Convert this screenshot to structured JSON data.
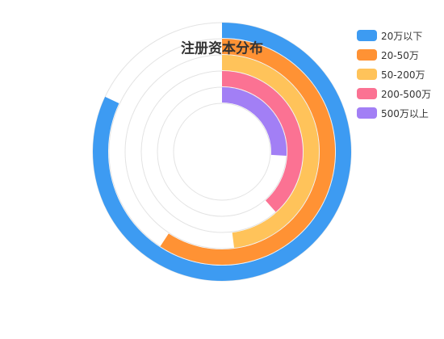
{
  "chart_data": {
    "type": "polar-bar",
    "title": "注册资本分布",
    "legend_position": "top-right",
    "angle_max": 250,
    "series": [
      {
        "name": "20万以下",
        "value": 205,
        "color": "#3d9bf2"
      },
      {
        "name": "20-50万",
        "value": 148,
        "color": "#ff9234"
      },
      {
        "name": "50-200万",
        "value": 120,
        "color": "#ffc35a"
      },
      {
        "name": "200-500万",
        "value": 96,
        "color": "#fb7293"
      },
      {
        "name": "500万以上",
        "value": 65,
        "color": "#a27ff5"
      }
    ]
  }
}
